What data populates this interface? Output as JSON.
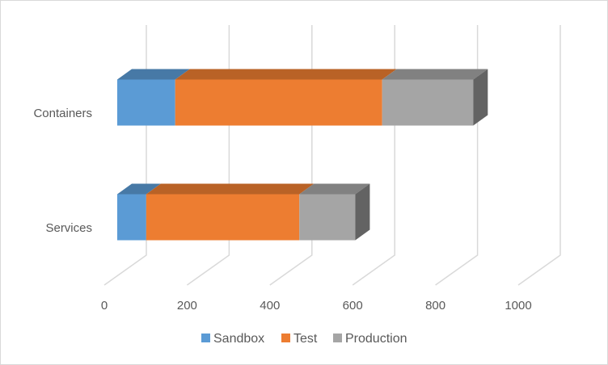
{
  "chart_data": {
    "type": "bar",
    "orientation": "horizontal",
    "stacked": true,
    "three_d": true,
    "categories": [
      "Services",
      "Containers"
    ],
    "series": [
      {
        "name": "Sandbox",
        "values": [
          70,
          140
        ],
        "color": "#5B9BD5"
      },
      {
        "name": "Test",
        "values": [
          370,
          500
        ],
        "color": "#ED7D31"
      },
      {
        "name": "Production",
        "values": [
          135,
          220
        ],
        "color": "#A5A5A5"
      }
    ],
    "xlim": [
      0,
      1000
    ],
    "x_ticks": [
      "0",
      "200",
      "400",
      "600",
      "800",
      "1000"
    ],
    "grid": true,
    "legend": "bottom",
    "title": "",
    "xlabel": "",
    "ylabel": ""
  }
}
